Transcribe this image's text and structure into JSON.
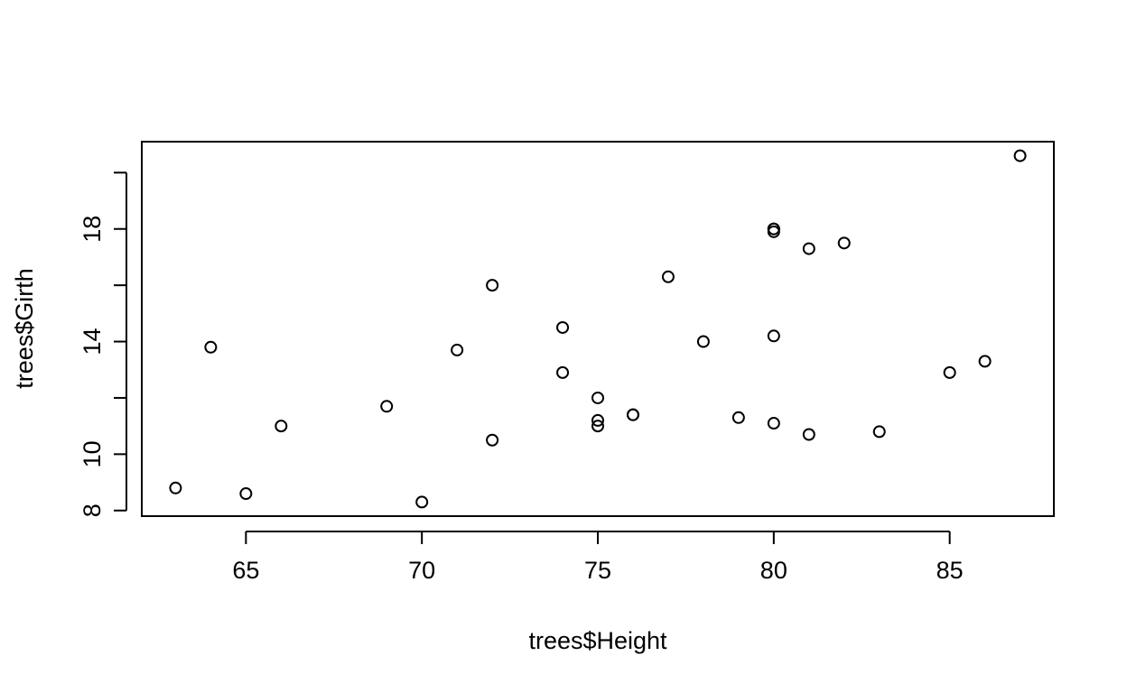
{
  "chart_data": {
    "type": "scatter",
    "title": "",
    "xlabel": "trees$Height",
    "ylabel": "trees$Girth",
    "xlim": [
      62.04,
      87.96
    ],
    "ylim": [
      7.8,
      21.1
    ],
    "xticks": [
      65,
      70,
      75,
      80,
      85
    ],
    "yticks": [
      8,
      10,
      12,
      14,
      16,
      18,
      20
    ],
    "yticklabels": [
      "8",
      "10",
      "",
      "14",
      "",
      "18",
      ""
    ],
    "grid": false,
    "legend": "none",
    "marker_color": "#000000",
    "points": [
      {
        "x": 70,
        "y": 8.3
      },
      {
        "x": 65,
        "y": 8.6
      },
      {
        "x": 63,
        "y": 8.8
      },
      {
        "x": 72,
        "y": 10.5
      },
      {
        "x": 81,
        "y": 10.7
      },
      {
        "x": 83,
        "y": 10.8
      },
      {
        "x": 66,
        "y": 11.0
      },
      {
        "x": 75,
        "y": 11.0
      },
      {
        "x": 80,
        "y": 11.1
      },
      {
        "x": 75,
        "y": 11.2
      },
      {
        "x": 79,
        "y": 11.3
      },
      {
        "x": 76,
        "y": 11.4
      },
      {
        "x": 76,
        "y": 11.4
      },
      {
        "x": 69,
        "y": 11.7
      },
      {
        "x": 75,
        "y": 12.0
      },
      {
        "x": 74,
        "y": 12.9
      },
      {
        "x": 85,
        "y": 12.9
      },
      {
        "x": 86,
        "y": 13.3
      },
      {
        "x": 71,
        "y": 13.7
      },
      {
        "x": 64,
        "y": 13.8
      },
      {
        "x": 78,
        "y": 14.0
      },
      {
        "x": 80,
        "y": 14.2
      },
      {
        "x": 74,
        "y": 14.5
      },
      {
        "x": 72,
        "y": 16.0
      },
      {
        "x": 77,
        "y": 16.3
      },
      {
        "x": 81,
        "y": 17.3
      },
      {
        "x": 82,
        "y": 17.5
      },
      {
        "x": 80,
        "y": 17.9
      },
      {
        "x": 80,
        "y": 18.0
      },
      {
        "x": 80,
        "y": 18.0
      },
      {
        "x": 87,
        "y": 20.6
      }
    ]
  }
}
